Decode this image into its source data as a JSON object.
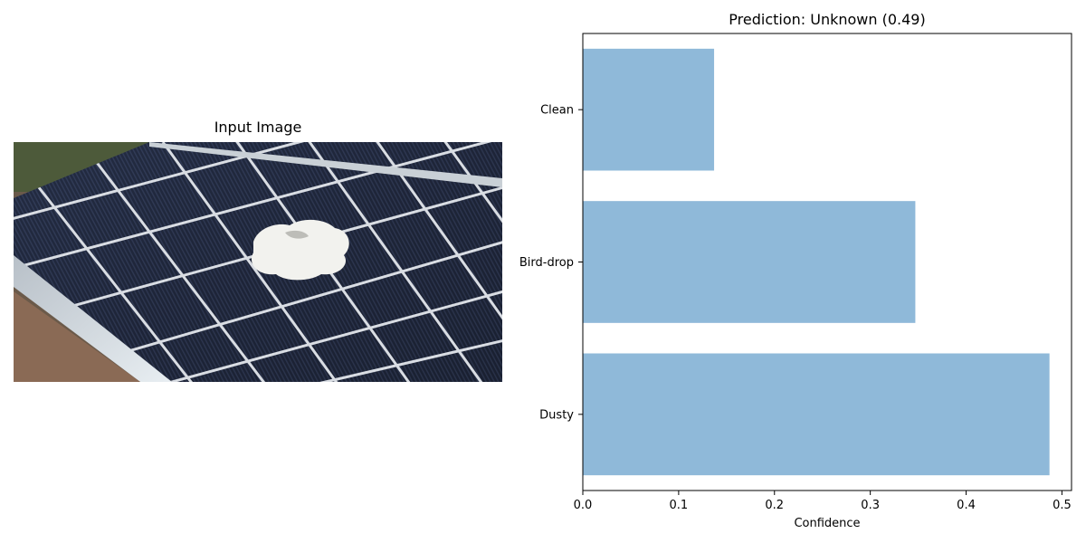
{
  "input_panel": {
    "title": "Input Image"
  },
  "chart_data": {
    "type": "bar",
    "orientation": "horizontal",
    "title": "Prediction: Unknown (0.49)",
    "xlabel": "Confidence",
    "ylabel": "",
    "categories": [
      "Dusty",
      "Bird-drop",
      "Clean"
    ],
    "values": [
      0.487,
      0.347,
      0.137
    ],
    "xlim": [
      0,
      0.51
    ],
    "xticks": [
      "0.0",
      "0.1",
      "0.2",
      "0.3",
      "0.4",
      "0.5"
    ],
    "bar_color": "#8fb9d9",
    "grid": false,
    "legend": "none"
  }
}
